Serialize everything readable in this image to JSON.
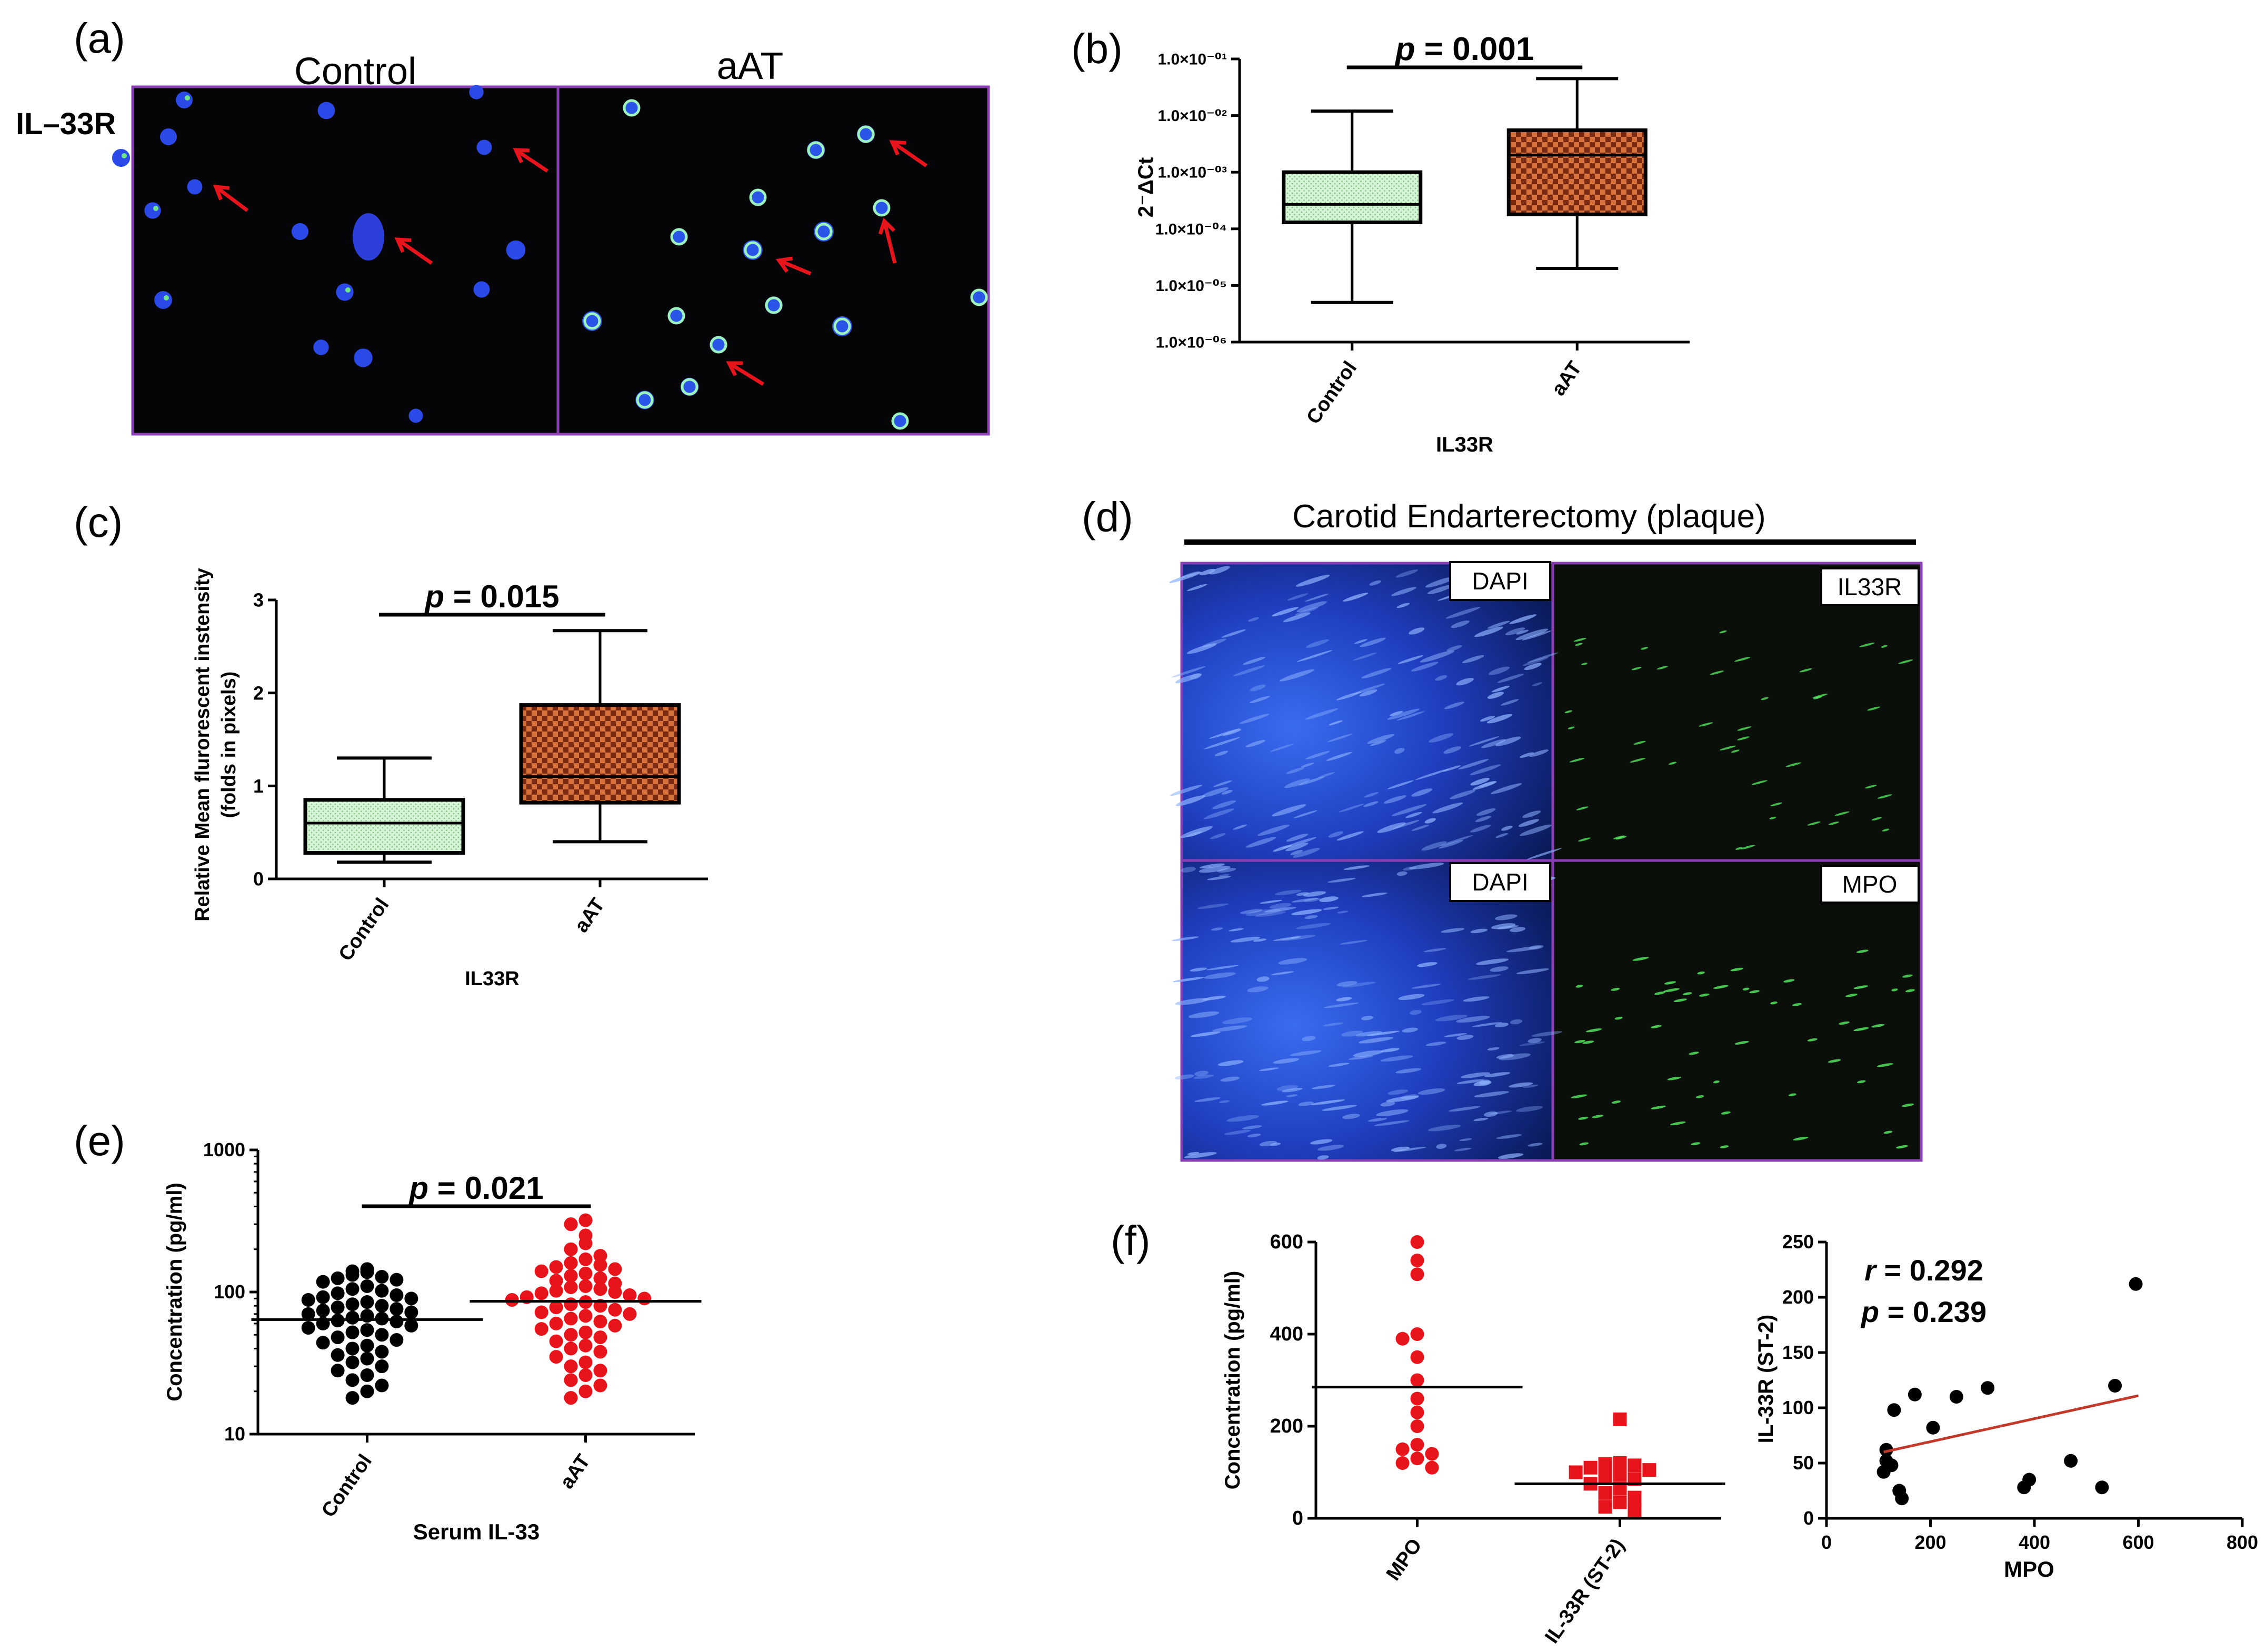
{
  "panel_labels": {
    "a": "(a)",
    "b": "(b)",
    "c": "(c)",
    "d": "(d)",
    "e": "(e)",
    "f": "(f)"
  },
  "panel_a": {
    "row_label": "IL–33R",
    "col_control": "Control",
    "col_aat": "aAT"
  },
  "panel_d": {
    "title": "Carotid Endarterectomy (plaque)",
    "labels": [
      "DAPI",
      "IL33R",
      "DAPI",
      "MPO"
    ]
  },
  "colors": {
    "control_fill": "#c9efc9",
    "aat_fill": "#b4512a",
    "red_points": "#e8141c",
    "arrow": "#e8141c",
    "regression": "#c0392b",
    "image_border": "#8a3fb5"
  },
  "chart_data": [
    {
      "id": "b",
      "type": "boxplot",
      "title": "",
      "xlabel": "IL33R",
      "ylabel": "2⁻ΔCt",
      "yscale": "log",
      "ylim": [
        1e-06,
        0.1
      ],
      "yticks": [
        "1.0×10⁻⁰¹",
        "1.0×10⁻⁰²",
        "1.0×10⁻⁰³",
        "1.0×10⁻⁰⁴",
        "1.0×10⁻⁰⁵",
        "1.0×10⁻⁰⁶"
      ],
      "ytick_values": [
        0.1,
        0.01,
        0.001,
        0.0001,
        1e-05,
        1e-06
      ],
      "categories": [
        "Control",
        "aAT"
      ],
      "boxes": [
        {
          "min": 5e-06,
          "q1": 0.00013,
          "median": 0.00027,
          "q3": 0.001,
          "max": 0.012
        },
        {
          "min": 2e-05,
          "q1": 0.00018,
          "median": 0.002,
          "q3": 0.0055,
          "max": 0.045
        }
      ],
      "annotation": "p = 0.001"
    },
    {
      "id": "c",
      "type": "boxplot",
      "title": "",
      "xlabel": "IL33R",
      "ylabel": "Relative Mean flurorescent instensity (folds in pixels)",
      "ylabel_lines": [
        "Relative Mean flurorescent instensity",
        "(folds in pixels)"
      ],
      "ylim": [
        0,
        3
      ],
      "yticks": [
        "0",
        "1",
        "2",
        "3"
      ],
      "categories": [
        "Control",
        "aAT"
      ],
      "boxes": [
        {
          "min": 0.18,
          "q1": 0.28,
          "median": 0.6,
          "q3": 0.85,
          "max": 1.3
        },
        {
          "min": 0.4,
          "q1": 0.82,
          "median": 1.1,
          "q3": 1.87,
          "max": 2.67
        }
      ],
      "annotation": "p = 0.015"
    },
    {
      "id": "e",
      "type": "scatter",
      "title": "",
      "xlabel": "Serum IL-33",
      "ylabel": "Concentration (pg/ml)",
      "yscale": "log",
      "ylim": [
        10,
        1000
      ],
      "yticks": [
        "1000",
        "100",
        "10"
      ],
      "categories": [
        "Control",
        "aAT"
      ],
      "series": [
        {
          "values": [
            145,
            140,
            138,
            132,
            128,
            125,
            122,
            118,
            110,
            105,
            102,
            98,
            95,
            92,
            90,
            88,
            85,
            82,
            80,
            78,
            76,
            74,
            72,
            70,
            68,
            66,
            65,
            63,
            62,
            60,
            58,
            56,
            54,
            52,
            50,
            48,
            46,
            44,
            42,
            40,
            38,
            36,
            34,
            32,
            30,
            28,
            26,
            24,
            22,
            20,
            18
          ],
          "mean": 64
        },
        {
          "values": [
            320,
            300,
            250,
            220,
            200,
            180,
            170,
            160,
            155,
            150,
            145,
            140,
            135,
            130,
            125,
            120,
            115,
            110,
            108,
            105,
            102,
            100,
            98,
            95,
            92,
            90,
            88,
            85,
            82,
            80,
            78,
            75,
            72,
            70,
            68,
            65,
            62,
            60,
            58,
            55,
            52,
            50,
            48,
            45,
            42,
            40,
            38,
            35,
            32,
            30,
            28,
            26,
            24,
            22,
            20,
            18
          ],
          "mean": 86
        }
      ],
      "annotation": "p = 0.021"
    },
    {
      "id": "f1",
      "type": "scatter",
      "title": "",
      "xlabel": "",
      "ylabel": "Concentration (pg/ml)",
      "ylim": [
        0,
        600
      ],
      "yticks": [
        "600",
        "400",
        "200",
        "0"
      ],
      "categories": [
        "MPO",
        "IL-33R (ST-2)"
      ],
      "series": [
        {
          "values": [
            600,
            560,
            530,
            400,
            390,
            350,
            300,
            260,
            230,
            200,
            160,
            150,
            140,
            130,
            120,
            110
          ],
          "mean": 285
        },
        {
          "values": [
            215,
            120,
            118,
            115,
            110,
            105,
            100,
            95,
            90,
            85,
            75,
            65,
            55,
            45,
            35,
            25,
            18
          ],
          "mean": 75
        }
      ]
    },
    {
      "id": "f2",
      "type": "scatter",
      "title": "",
      "xlabel": "MPO",
      "ylabel": "IL-33R (ST-2)",
      "xlim": [
        0,
        800
      ],
      "ylim": [
        0,
        250
      ],
      "xticks": [
        "0",
        "200",
        "400",
        "600",
        "800"
      ],
      "yticks": [
        "0",
        "50",
        "100",
        "150",
        "200",
        "250"
      ],
      "points": [
        [
          110,
          42
        ],
        [
          115,
          52
        ],
        [
          115,
          62
        ],
        [
          125,
          48
        ],
        [
          130,
          98
        ],
        [
          140,
          25
        ],
        [
          145,
          18
        ],
        [
          170,
          112
        ],
        [
          205,
          82
        ],
        [
          250,
          110
        ],
        [
          310,
          118
        ],
        [
          380,
          28
        ],
        [
          390,
          35
        ],
        [
          470,
          52
        ],
        [
          530,
          28
        ],
        [
          555,
          120
        ],
        [
          595,
          212
        ]
      ],
      "fit": [
        [
          110,
          60
        ],
        [
          600,
          111
        ]
      ],
      "annotation_r": "r = 0.292",
      "annotation_p": "p = 0.239"
    }
  ]
}
